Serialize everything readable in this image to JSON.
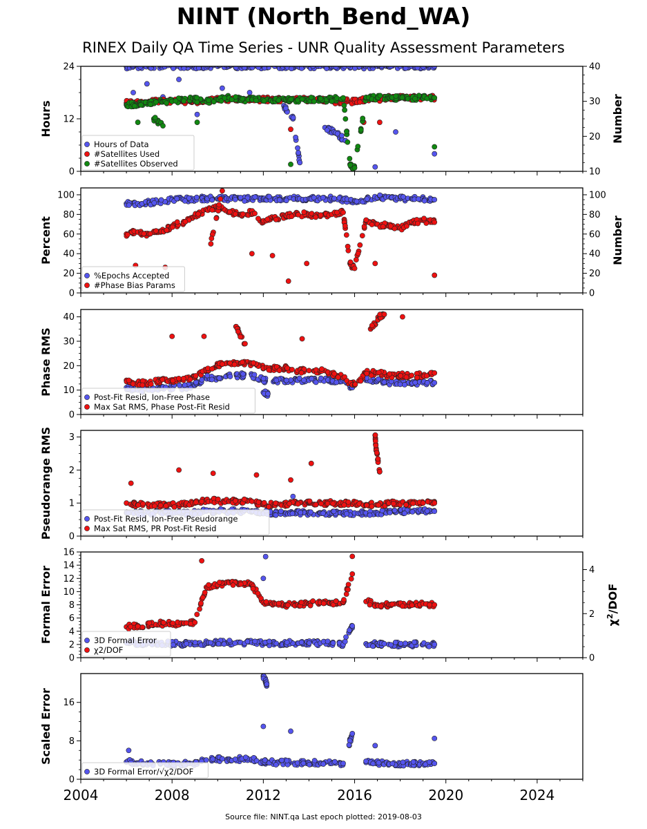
{
  "title": "NINT (North_Bend_WA)",
  "subtitle": "RINEX Daily QA Time Series - UNR Quality Assessment Parameters",
  "footer": "Source file: NINT.qa Last epoch plotted: 2019-08-03",
  "colors": {
    "blue": "#5555ee",
    "red": "#ee1111",
    "green": "#118811",
    "edge": "#222222"
  },
  "chart_data": [
    {
      "type": "scatter",
      "ylabel": "Hours",
      "ylabel_right": "Number",
      "xlim": [
        2004,
        2026
      ],
      "ylim": [
        0,
        24
      ],
      "yticks": [
        "0",
        "12",
        "24"
      ],
      "ylim_right": [
        10,
        40
      ],
      "yticks_right": [
        "10",
        "20",
        "30",
        "40"
      ],
      "legend_position": "lower-left",
      "series": [
        {
          "name": "Hours of Data",
          "color": "blue",
          "axis": "left",
          "x": [
            2006.0,
            2006.5,
            2007.0,
            2007.5,
            2008.0,
            2008.5,
            2009.0,
            2009.5,
            2010.0,
            2010.5,
            2011.0,
            2011.5,
            2012.0,
            2012.5,
            2013.0,
            2013.5,
            2014.0,
            2014.5,
            2015.0,
            2015.5,
            2016.0,
            2016.5,
            2017.0,
            2017.5,
            2018.0,
            2018.5,
            2019.0,
            2019.5,
            2006.3,
            2006.9,
            2007.6,
            2008.3,
            2009.1,
            2010.2,
            2011.4,
            2012.1,
            2012.9,
            2013.3,
            2013.6,
            2014.7,
            2015.1,
            2015.6,
            2016.9,
            2017.8,
            2019.5
          ],
          "y": [
            24,
            24,
            24,
            24,
            24,
            24,
            24,
            24,
            24,
            24,
            24,
            24,
            24,
            24,
            24,
            24,
            24,
            24,
            24,
            24,
            24,
            24,
            24,
            24,
            24,
            24,
            24,
            24,
            18,
            20,
            17,
            21,
            13,
            19,
            18,
            16,
            15,
            12,
            2,
            10,
            9,
            7,
            1,
            9,
            4
          ]
        },
        {
          "name": "#Satellites Used",
          "color": "red",
          "axis": "right",
          "x": [
            2006.0,
            2006.5,
            2007.0,
            2007.5,
            2008.0,
            2008.5,
            2009.0,
            2009.5,
            2010.0,
            2010.5,
            2011.0,
            2011.5,
            2012.0,
            2012.5,
            2013.0,
            2013.5,
            2014.0,
            2014.5,
            2015.0,
            2015.5,
            2016.0,
            2016.5,
            2017.0,
            2017.5,
            2018.0,
            2018.5,
            2019.0,
            2019.5,
            2013.2,
            2016.4,
            2017.1
          ],
          "y": [
            29.5,
            29.5,
            30,
            30,
            30,
            30,
            30,
            30,
            30.5,
            30.5,
            30.5,
            30.5,
            30.5,
            30.5,
            30.5,
            30.5,
            30.5,
            30.5,
            30,
            30,
            30,
            30.5,
            30.5,
            31,
            31,
            31,
            31,
            31,
            22,
            24,
            24
          ]
        },
        {
          "name": "#Satellites Observed",
          "color": "green",
          "axis": "right",
          "x": [
            2006.0,
            2006.3,
            2006.6,
            2007.0,
            2007.5,
            2008.0,
            2008.5,
            2009.0,
            2009.5,
            2010.0,
            2010.5,
            2011.0,
            2011.5,
            2012.0,
            2012.5,
            2013.0,
            2013.5,
            2014.0,
            2014.5,
            2015.0,
            2015.5,
            2015.8,
            2016.0,
            2016.5,
            2017.0,
            2017.5,
            2018.0,
            2018.5,
            2019.0,
            2019.5,
            2006.5,
            2007.2,
            2007.6,
            2009.1,
            2013.2,
            2019.5
          ],
          "y": [
            29,
            29,
            29.5,
            29.5,
            30,
            30,
            30.5,
            30.5,
            30,
            30.5,
            31,
            30.5,
            30.5,
            30.5,
            30.5,
            30.5,
            30.5,
            30.5,
            30.5,
            30.5,
            31,
            12,
            11,
            31,
            31,
            31,
            31,
            31,
            31,
            31,
            24,
            25,
            23,
            24,
            12,
            17
          ]
        }
      ]
    },
    {
      "type": "scatter",
      "ylabel": "Percent",
      "ylabel_right": "Number",
      "xlim": [
        2004,
        2026
      ],
      "ylim": [
        0,
        107
      ],
      "yticks": [
        "0",
        "20",
        "40",
        "60",
        "80",
        "100"
      ],
      "ylim_right": [
        0,
        107
      ],
      "yticks_right": [
        "0",
        "20",
        "40",
        "60",
        "80",
        "100"
      ],
      "legend_position": "lower-left",
      "series": [
        {
          "name": "%Epochs Accepted",
          "color": "blue",
          "axis": "left",
          "x": [
            2006.0,
            2006.5,
            2007.0,
            2007.5,
            2008.0,
            2008.5,
            2009.0,
            2009.5,
            2010.0,
            2010.5,
            2011.0,
            2011.5,
            2012.0,
            2012.5,
            2013.0,
            2013.5,
            2014.0,
            2014.5,
            2015.0,
            2015.5,
            2016.0,
            2016.5,
            2017.0,
            2017.5,
            2018.0,
            2018.5,
            2019.0,
            2019.5
          ],
          "y": [
            91,
            91,
            92,
            93,
            95,
            95,
            96,
            96,
            96,
            96,
            96,
            96,
            96,
            96,
            96,
            96,
            96,
            96,
            96,
            95,
            94,
            95,
            97,
            98,
            96,
            96,
            96,
            95
          ]
        },
        {
          "name": "#Phase Bias Params",
          "color": "red",
          "axis": "right",
          "x": [
            2006.0,
            2006.5,
            2007.0,
            2007.5,
            2008.0,
            2008.5,
            2009.0,
            2009.5,
            2010.0,
            2010.5,
            2011.0,
            2011.5,
            2012.0,
            2012.5,
            2013.0,
            2013.5,
            2014.0,
            2014.5,
            2015.0,
            2015.5,
            2015.8,
            2016.0,
            2016.5,
            2017.0,
            2017.5,
            2018.0,
            2018.5,
            2019.0,
            2019.5,
            2006.4,
            2007.7,
            2009.7,
            2010.2,
            2011.5,
            2012.4,
            2013.1,
            2013.9,
            2016.9,
            2019.5
          ],
          "y": [
            60,
            62,
            60,
            62,
            68,
            72,
            78,
            85,
            88,
            82,
            80,
            82,
            72,
            76,
            78,
            80,
            80,
            78,
            80,
            82,
            30,
            25,
            74,
            70,
            68,
            66,
            72,
            74,
            72,
            28,
            26,
            50,
            104,
            40,
            38,
            12,
            30,
            30,
            18
          ]
        }
      ]
    },
    {
      "type": "scatter",
      "ylabel": "Phase RMS",
      "xlim": [
        2004,
        2026
      ],
      "ylim": [
        0,
        43
      ],
      "yticks": [
        "0",
        "10",
        "20",
        "30",
        "40"
      ],
      "legend_position": "lower-left",
      "series": [
        {
          "name": "Post-Fit Resid, Ion-Free Phase",
          "color": "blue",
          "x": [
            2006.0,
            2006.5,
            2007.0,
            2007.5,
            2008.0,
            2008.5,
            2009.0,
            2009.5,
            2010.0,
            2010.5,
            2011.0,
            2011.5,
            2012.0,
            2012.5,
            2013.0,
            2013.5,
            2014.0,
            2014.5,
            2015.0,
            2015.5,
            2015.9,
            2016.5,
            2017.0,
            2017.5,
            2018.0,
            2018.5,
            2019.0,
            2019.5,
            2012.0,
            2012.2
          ],
          "y": [
            11,
            10,
            10,
            11,
            11,
            11,
            12,
            15,
            15,
            16,
            16,
            16,
            14,
            14,
            14,
            14,
            14,
            14,
            14,
            14,
            11,
            14,
            14,
            13,
            13,
            13,
            13,
            13,
            9,
            8.5
          ]
        },
        {
          "name": "Max Sat RMS, Phase Post-Fit Resid",
          "color": "red",
          "x": [
            2006.0,
            2006.5,
            2007.0,
            2007.5,
            2008.0,
            2008.5,
            2009.0,
            2009.5,
            2010.0,
            2010.5,
            2011.0,
            2011.5,
            2012.0,
            2012.5,
            2013.0,
            2013.5,
            2014.0,
            2014.5,
            2015.0,
            2015.5,
            2016.0,
            2016.5,
            2017.0,
            2017.5,
            2018.0,
            2018.5,
            2019.0,
            2019.5,
            2009.4,
            2010.8,
            2011.2,
            2013.7,
            2016.7,
            2017.1,
            2017.3,
            2018.1,
            2008.0
          ],
          "y": [
            14,
            13,
            13,
            14,
            14,
            14,
            15,
            18,
            20,
            21,
            21,
            21,
            19,
            19,
            19,
            18,
            18,
            18,
            17,
            15,
            12,
            17,
            17,
            16,
            16,
            16,
            16,
            17,
            32,
            36,
            29,
            31,
            35,
            40,
            41,
            40,
            32
          ]
        }
      ]
    },
    {
      "type": "scatter",
      "ylabel": "Pseudorange RMS",
      "xlim": [
        2004,
        2026
      ],
      "ylim": [
        0,
        3.2
      ],
      "yticks": [
        "0",
        "1",
        "2",
        "3"
      ],
      "legend_position": "lower-left",
      "series": [
        {
          "name": "Post-Fit Resid, Ion-Free Pseudorange",
          "color": "blue",
          "x": [
            2006.0,
            2006.5,
            2007.0,
            2007.5,
            2008.0,
            2008.5,
            2009.0,
            2009.5,
            2010.0,
            2010.5,
            2011.0,
            2011.5,
            2012.0,
            2012.5,
            2013.0,
            2013.5,
            2014.0,
            2014.5,
            2015.0,
            2015.5,
            2016.0,
            2016.5,
            2017.0,
            2017.5,
            2018.0,
            2018.5,
            2019.0,
            2019.5,
            2013.3
          ],
          "y": [
            0.7,
            0.7,
            0.7,
            0.7,
            0.7,
            0.7,
            0.7,
            0.75,
            0.75,
            0.75,
            0.75,
            0.75,
            0.7,
            0.7,
            0.7,
            0.7,
            0.7,
            0.7,
            0.7,
            0.7,
            0.7,
            0.7,
            0.7,
            0.75,
            0.75,
            0.75,
            0.75,
            0.75,
            1.2
          ]
        },
        {
          "name": "Max Sat RMS, PR Post-Fit Resid",
          "color": "red",
          "x": [
            2006.0,
            2006.5,
            2007.0,
            2007.5,
            2008.0,
            2008.5,
            2009.0,
            2009.5,
            2010.0,
            2010.5,
            2011.0,
            2011.5,
            2012.0,
            2012.5,
            2013.0,
            2013.5,
            2014.0,
            2014.5,
            2015.0,
            2015.5,
            2016.0,
            2016.5,
            2017.0,
            2017.5,
            2018.0,
            2018.5,
            2019.0,
            2019.5,
            2006.2,
            2008.3,
            2009.8,
            2011.7,
            2013.2,
            2014.1,
            2016.9,
            2016.95,
            2017.1
          ],
          "y": [
            1.0,
            0.95,
            0.95,
            0.95,
            0.95,
            0.95,
            1.0,
            1.1,
            1.05,
            1.05,
            1.05,
            1.05,
            0.95,
            0.95,
            0.95,
            1.0,
            1.0,
            1.0,
            1.0,
            1.0,
            1.0,
            0.95,
            0.95,
            1.0,
            1.0,
            1.0,
            1.0,
            1.0,
            1.6,
            2.0,
            1.9,
            1.85,
            1.7,
            2.2,
            3.05,
            2.6,
            1.95
          ]
        }
      ]
    },
    {
      "type": "scatter",
      "ylabel": "Formal Error",
      "ylabel_right": "χ2/DOF",
      "xlim": [
        2004,
        2026
      ],
      "ylim": [
        0,
        16
      ],
      "yticks": [
        "0",
        "2",
        "4",
        "6",
        "8",
        "10",
        "12",
        "14",
        "16"
      ],
      "ylim_right": [
        0,
        4.8
      ],
      "yticks_right": [
        "0",
        "2",
        "4"
      ],
      "legend_position": "lower-left",
      "series": [
        {
          "name": "3D Formal Error",
          "color": "blue",
          "axis": "left",
          "x": [
            2006.0,
            2006.5,
            2007.0,
            2007.5,
            2008.0,
            2008.5,
            2009.0,
            2009.5,
            2010.0,
            2010.5,
            2011.0,
            2011.5,
            2012.0,
            2012.5,
            2013.0,
            2013.5,
            2014.0,
            2014.5,
            2015.0,
            2015.5,
            2015.9,
            2016.5,
            2017.0,
            2017.5,
            2018.0,
            2018.5,
            2019.0,
            2019.5,
            2012.1,
            2012.0
          ],
          "y": [
            2.3,
            2.2,
            2.2,
            2.2,
            2.1,
            2.1,
            2.1,
            2.2,
            2.3,
            2.3,
            2.3,
            2.3,
            2.2,
            2.2,
            2.2,
            2.2,
            2.2,
            2.2,
            2.1,
            2.0,
            4.8,
            2.1,
            2.1,
            2.0,
            2.0,
            2.0,
            2.0,
            2.0,
            15.3,
            12.0
          ]
        },
        {
          "name": "χ2/DOF",
          "color": "red",
          "axis": "right",
          "x": [
            2006.0,
            2006.5,
            2007.0,
            2007.5,
            2008.0,
            2008.5,
            2009.0,
            2009.5,
            2010.0,
            2010.5,
            2011.0,
            2011.5,
            2012.0,
            2012.5,
            2013.0,
            2013.5,
            2014.0,
            2014.5,
            2015.0,
            2015.5,
            2015.9,
            2016.5,
            2017.0,
            2017.5,
            2018.0,
            2018.5,
            2019.0,
            2019.5,
            2009.3,
            2015.9
          ],
          "y": [
            1.4,
            1.45,
            1.5,
            1.55,
            1.55,
            1.55,
            1.6,
            3.2,
            3.3,
            3.4,
            3.4,
            3.3,
            2.5,
            2.45,
            2.4,
            2.4,
            2.45,
            2.5,
            2.5,
            2.5,
            3.8,
            2.55,
            2.4,
            2.4,
            2.4,
            2.45,
            2.45,
            2.4,
            4.4,
            4.6
          ]
        }
      ]
    },
    {
      "type": "scatter",
      "ylabel": "Scaled Error",
      "xlim": [
        2004,
        2026
      ],
      "ylim": [
        0,
        22
      ],
      "yticks": [
        "0",
        "8",
        "16"
      ],
      "xticks": [
        "2004",
        "2008",
        "2012",
        "2016",
        "2020",
        "2024"
      ],
      "legend_position": "lower-left",
      "series": [
        {
          "name": "3D Formal Error/√χ2/DOF",
          "color": "blue",
          "x": [
            2006.0,
            2006.5,
            2007.0,
            2007.5,
            2008.0,
            2008.5,
            2009.0,
            2009.5,
            2010.0,
            2010.5,
            2011.0,
            2011.5,
            2012.0,
            2012.5,
            2013.0,
            2013.5,
            2014.0,
            2014.5,
            2015.0,
            2015.5,
            2015.9,
            2016.5,
            2017.0,
            2017.5,
            2018.0,
            2018.5,
            2019.0,
            2019.5,
            2012.0,
            2012.1,
            2012.15,
            2012.0,
            2013.2,
            2016.9,
            2019.5,
            2006.1
          ],
          "y": [
            3.6,
            3.4,
            3.3,
            3.3,
            3.2,
            3.2,
            3.3,
            4.0,
            4.2,
            4.2,
            4.2,
            4.2,
            3.6,
            3.5,
            3.5,
            3.4,
            3.4,
            3.4,
            3.3,
            3.3,
            9.5,
            3.5,
            3.4,
            3.3,
            3.3,
            3.3,
            3.3,
            3.3,
            21.5,
            20.5,
            19.8,
            11,
            10,
            7,
            8.5,
            6
          ]
        }
      ]
    }
  ]
}
